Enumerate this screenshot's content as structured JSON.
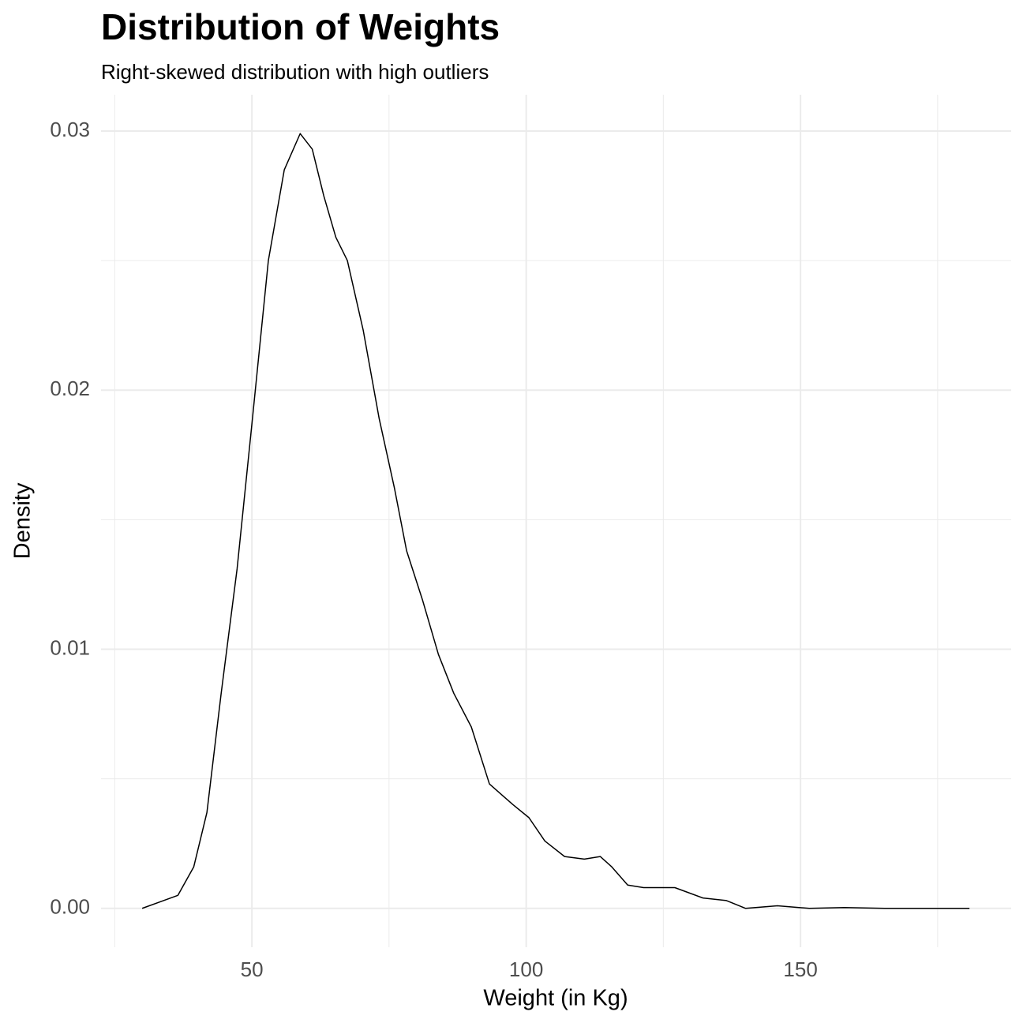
{
  "chart_data": {
    "type": "line",
    "title": "Distribution of Weights",
    "subtitle": "Right-skewed distribution with high outliers",
    "x_label": "Weight (in Kg)",
    "y_label": "Density",
    "x": [
      30,
      36.5,
      39.4,
      41.8,
      44.4,
      47.3,
      50.1,
      53,
      55.9,
      58.8,
      61,
      63.1,
      65.3,
      67.4,
      70.3,
      73.2,
      76,
      78.2,
      81.1,
      84,
      86.8,
      90,
      93.3,
      97.6,
      100.5,
      103.4,
      107,
      110.6,
      113.5,
      115.6,
      118.5,
      121.4,
      127.1,
      132.2,
      136.5,
      140,
      145.8,
      151.6,
      158,
      165.3,
      180.8
    ],
    "values": [
      0.0,
      0.0005,
      0.0016,
      0.0037,
      0.0083,
      0.0131,
      0.0189,
      0.025,
      0.0285,
      0.0299,
      0.0293,
      0.0275,
      0.0259,
      0.025,
      0.0223,
      0.0189,
      0.0162,
      0.0138,
      0.0119,
      0.0098,
      0.0083,
      0.007,
      0.0048,
      0.004,
      0.0035,
      0.0026,
      0.002,
      0.0019,
      0.002,
      0.0016,
      0.0009,
      0.0008,
      0.0008,
      0.0004,
      0.0003,
      0.0,
      0.0001,
      0.0,
      3e-05,
      0.0,
      0.0
    ],
    "color": "#000000",
    "xlim": [
      22.5,
      188.4
    ],
    "ylim": [
      -0.0015,
      0.0314
    ],
    "xticks": [
      50,
      100,
      150
    ],
    "yticks": [
      {
        "value": 0,
        "label": "0.00"
      },
      {
        "value": 0.01,
        "label": "0.01"
      },
      {
        "value": 0.02,
        "label": "0.02"
      },
      {
        "value": 0.03,
        "label": "0.03"
      }
    ],
    "minor_xticks": [
      25,
      75,
      125,
      175
    ],
    "minor_yticks": [
      0.005,
      0.015,
      0.025
    ],
    "grid": true
  }
}
